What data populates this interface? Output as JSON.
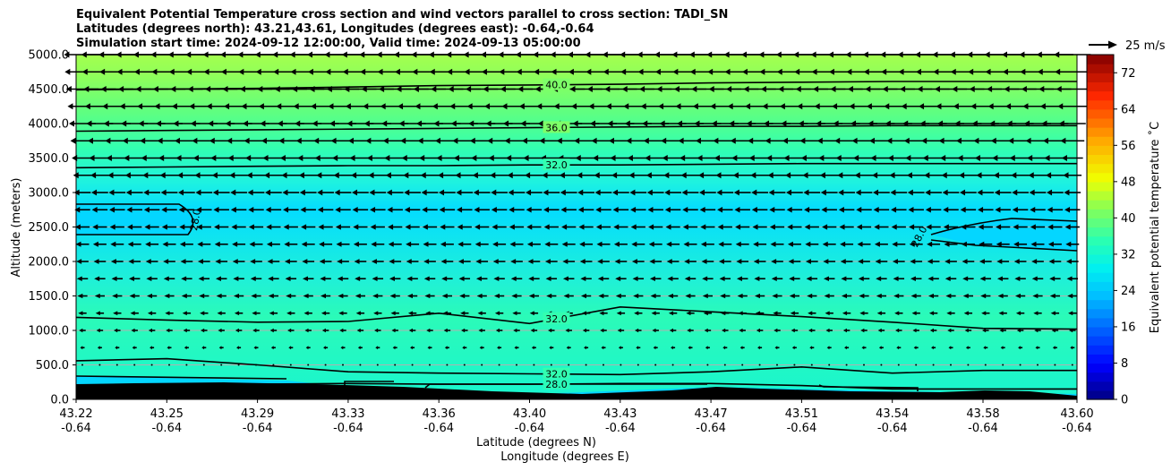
{
  "title": {
    "line1": "Equivalent Potential Temperature cross section and wind vectors parallel to cross section: TADI_SN",
    "line2": "Latitudes (degrees north): 43.21,43.61, Longitudes (degrees east): -0.64,-0.64",
    "line3": "Simulation start time: 2024-09-12 12:00:00, Valid time: 2024-09-13 05:00:00"
  },
  "quiver_key": {
    "label": "25 m/s"
  },
  "colorbar": {
    "label": "Equivalent potential temperature ˚C",
    "ticks": [
      "0",
      "8",
      "16",
      "24",
      "32",
      "40",
      "48",
      "56",
      "64",
      "72"
    ],
    "range": [
      0,
      76
    ]
  },
  "chart_data": {
    "type": "heatmap",
    "xlabel_line1": "Latitude (degrees N)",
    "xlabel_line2": "Longitude (degrees E)",
    "ylabel": "Altitude (meters)",
    "x_ticks": [
      {
        "lat": "43.22",
        "lon": "-0.64"
      },
      {
        "lat": "43.25",
        "lon": "-0.64"
      },
      {
        "lat": "43.29",
        "lon": "-0.64"
      },
      {
        "lat": "43.33",
        "lon": "-0.64"
      },
      {
        "lat": "43.36",
        "lon": "-0.64"
      },
      {
        "lat": "43.40",
        "lon": "-0.64"
      },
      {
        "lat": "43.43",
        "lon": "-0.64"
      },
      {
        "lat": "43.47",
        "lon": "-0.64"
      },
      {
        "lat": "43.51",
        "lon": "-0.64"
      },
      {
        "lat": "43.54",
        "lon": "-0.64"
      },
      {
        "lat": "43.58",
        "lon": "-0.64"
      },
      {
        "lat": "43.60",
        "lon": "-0.64"
      }
    ],
    "y_ticks": [
      "0.0",
      "500.0",
      "1000.0",
      "1500.0",
      "2000.0",
      "2500.0",
      "3000.0",
      "3500.0",
      "4000.0",
      "4500.0",
      "5000.0"
    ],
    "ylim": [
      0,
      5000
    ],
    "grid": true,
    "contour_labels": [
      "40.0",
      "36.0",
      "32.0",
      "28.0",
      "28.0",
      "32.0",
      "32.0",
      "28.0"
    ],
    "contours": [
      {
        "level": 40,
        "label": "40.0",
        "alt": [
          4490,
          4500,
          4510,
          4530,
          4550,
          4560,
          4570,
          4590,
          4600,
          4610,
          4610,
          4610
        ]
      },
      {
        "level": 36,
        "label": "36.0",
        "alt": [
          3890,
          3900,
          3910,
          3920,
          3930,
          3940,
          3950,
          3960,
          3960,
          3970,
          3970,
          3970
        ]
      },
      {
        "level": 32,
        "label": "32.0",
        "alt": [
          3360,
          3370,
          3380,
          3390,
          3390,
          3400,
          3400,
          3410,
          3420,
          3420,
          3420,
          3420
        ]
      },
      {
        "level": 32,
        "label": "32.0",
        "alt": [
          1190,
          1150,
          1120,
          1130,
          1250,
          1100,
          1340,
          1270,
          1200,
          1120,
          1030,
          1020
        ]
      },
      {
        "level": 32,
        "label": "32.0",
        "alt": [
          560,
          590,
          500,
          400,
          380,
          370,
          360,
          400,
          470,
          380,
          420,
          420
        ]
      },
      {
        "level": 28,
        "label": "28.0",
        "alt": [
          200,
          210,
          220,
          230,
          220,
          220,
          230,
          230,
          200,
          150,
          150,
          150
        ]
      }
    ],
    "wind": {
      "levels_m": [
        0,
        250,
        500,
        750,
        1000,
        1250,
        1500,
        1750,
        2000,
        2250,
        2500,
        2750,
        3000,
        3250,
        3500,
        3750,
        4000,
        4250,
        4500,
        4750,
        5000
      ],
      "u_ms": [
        0,
        0,
        0.5,
        0.8,
        1.2,
        1.5,
        1.8,
        2.0,
        2.2,
        2.4,
        2.6,
        2.8,
        3.0,
        3.3,
        3.8,
        4.3,
        4.8,
        5.3,
        5.8,
        6.3,
        6.6
      ]
    }
  }
}
